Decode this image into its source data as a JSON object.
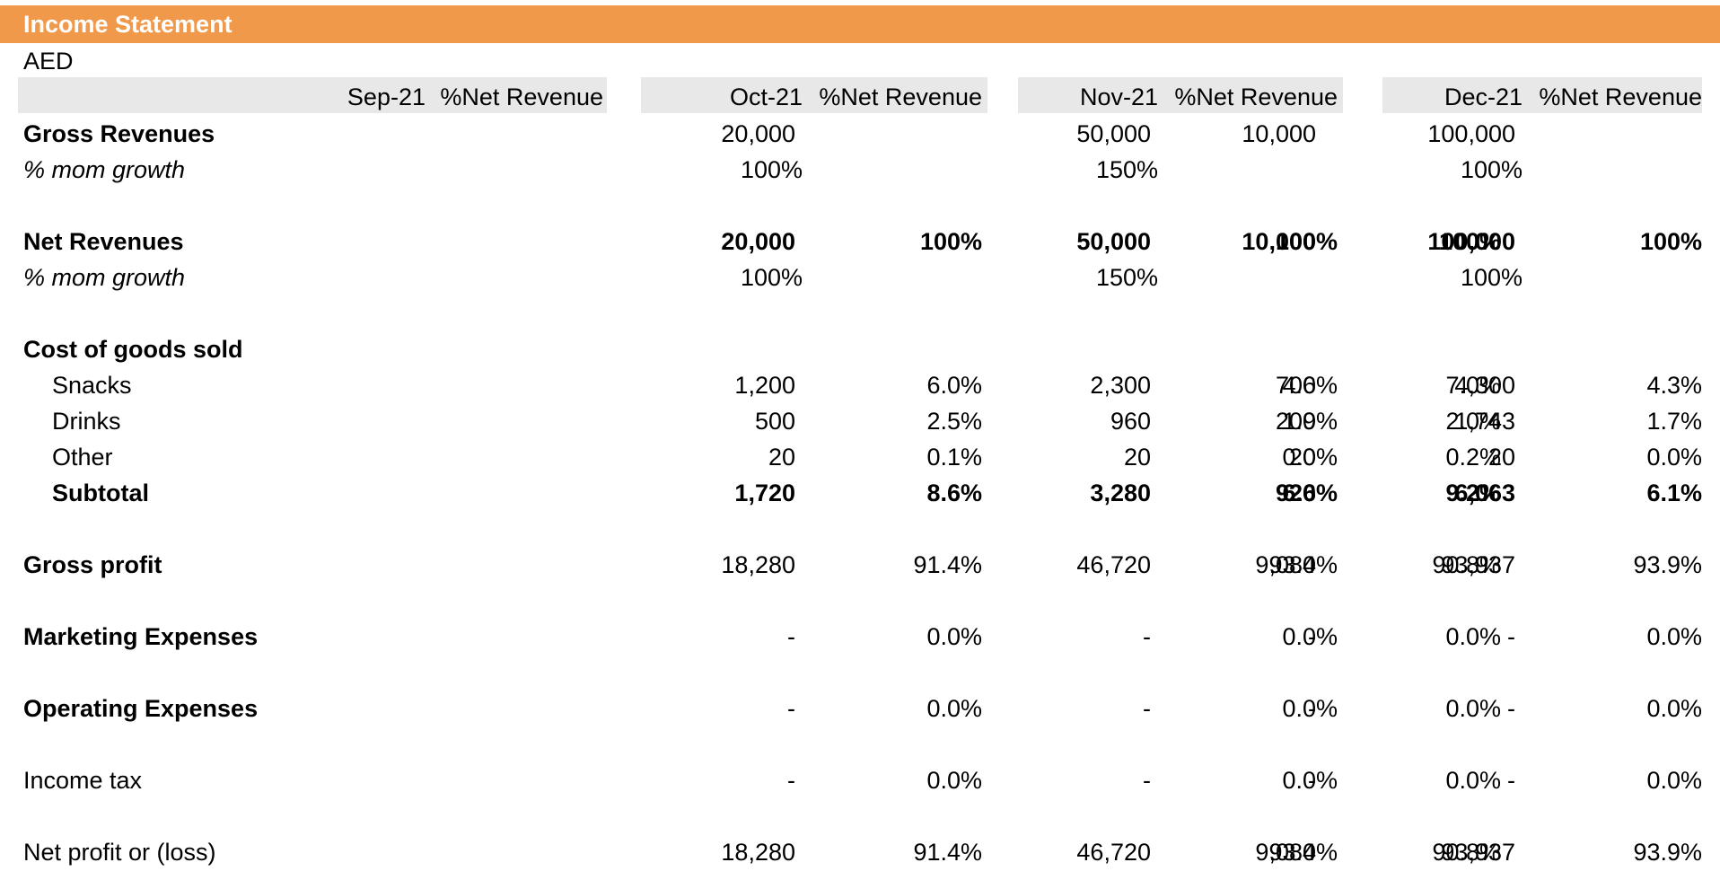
{
  "sheet": {
    "title": "Income Statement",
    "currency": "AED",
    "colors": {
      "title_bar": "#f0994a",
      "header_band": "#e8e8e8"
    }
  },
  "columns": [
    {
      "month": "Sep-21",
      "pct_header": "%Net Revenue"
    },
    {
      "month": "Oct-21",
      "pct_header": "%Net Revenue"
    },
    {
      "month": "Nov-21",
      "pct_header": "%Net Revenue"
    },
    {
      "month": "Dec-21",
      "pct_header": "%Net Revenue"
    }
  ],
  "rows": [
    {
      "label": "Gross Revenues",
      "style": "bold",
      "values": [
        "10,000",
        "",
        "20,000",
        "",
        "50,000",
        "",
        "100,000",
        ""
      ]
    },
    {
      "label": "% mom growth",
      "style": "italic",
      "growth": [
        "",
        "100%",
        "150%",
        "100%"
      ]
    },
    {
      "label": "Net Revenues",
      "style": "bold",
      "values": [
        "10,000",
        "100%",
        "20,000",
        "100%",
        "50,000",
        "100%",
        "100,000",
        "100%"
      ]
    },
    {
      "label": "% mom growth",
      "style": "italic",
      "growth": [
        "",
        "100%",
        "150%",
        "100%"
      ]
    },
    {
      "label": "Cost of goods sold",
      "style": "bold",
      "values": [
        "",
        "",
        "",
        "",
        "",
        "",
        "",
        ""
      ]
    },
    {
      "label": "Snacks",
      "style": "indent",
      "values": [
        "700",
        "7.0%",
        "1,200",
        "6.0%",
        "2,300",
        "4.6%",
        "4,300",
        "4.3%"
      ]
    },
    {
      "label": "Drinks",
      "style": "indent",
      "values": [
        "200",
        "2.0%",
        "500",
        "2.5%",
        "960",
        "1.9%",
        "1,743",
        "1.7%"
      ]
    },
    {
      "label": "Other",
      "style": "indent",
      "values": [
        "20",
        "0.2%",
        "20",
        "0.1%",
        "20",
        "0.0%",
        "20",
        "0.0%"
      ]
    },
    {
      "label": "Subtotal",
      "style": "indent-bold",
      "values": [
        "920",
        "9.2%",
        "1,720",
        "8.6%",
        "3,280",
        "6.6%",
        "6,063",
        "6.1%"
      ]
    },
    {
      "label": "Gross profit",
      "style": "bold",
      "values": [
        "9,080",
        "90.8%",
        "18,280",
        "91.4%",
        "46,720",
        "93.4%",
        "93,937",
        "93.9%"
      ]
    },
    {
      "label": "Marketing Expenses",
      "style": "bold",
      "values": [
        "-",
        "0.0%",
        "-",
        "0.0%",
        "-",
        "0.0%",
        "-",
        "0.0%"
      ]
    },
    {
      "label": "Operating Expenses",
      "style": "bold",
      "values": [
        "-",
        "0.0%",
        "-",
        "0.0%",
        "-",
        "0.0%",
        "-",
        "0.0%"
      ]
    },
    {
      "label": "Income tax",
      "style": "normal",
      "values": [
        "-",
        "0.0%",
        "-",
        "0.0%",
        "-",
        "0.0%",
        "-",
        "0.0%"
      ]
    },
    {
      "label": "Net profit or (loss)",
      "style": "normal",
      "values": [
        "9,080",
        "90.8%",
        "18,280",
        "91.4%",
        "46,720",
        "93.4%",
        "93,937",
        "93.9%"
      ]
    }
  ]
}
